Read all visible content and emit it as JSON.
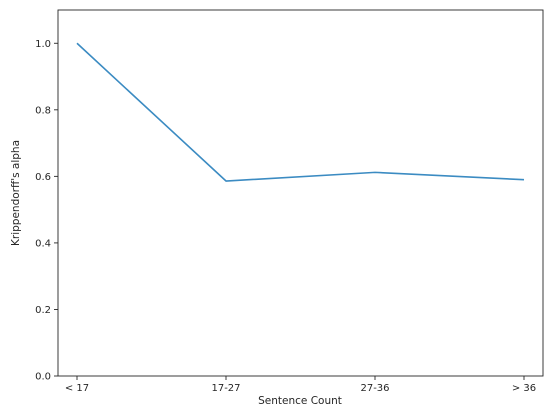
{
  "chart_data": {
    "type": "line",
    "categories": [
      "< 17",
      "17-27",
      "27-36",
      "> 36"
    ],
    "series": [
      {
        "values": [
          1.0,
          0.586,
          0.612,
          0.59
        ],
        "color": "#3b8bc2"
      }
    ],
    "title": "",
    "xlabel": "Sentence Count",
    "ylabel": "Krippendorff's alpha",
    "ylim": [
      0.0,
      1.1
    ],
    "yticks": [
      "0.0",
      "0.2",
      "0.4",
      "0.6",
      "0.8",
      "1.0"
    ],
    "grid": false,
    "legend": "none"
  }
}
